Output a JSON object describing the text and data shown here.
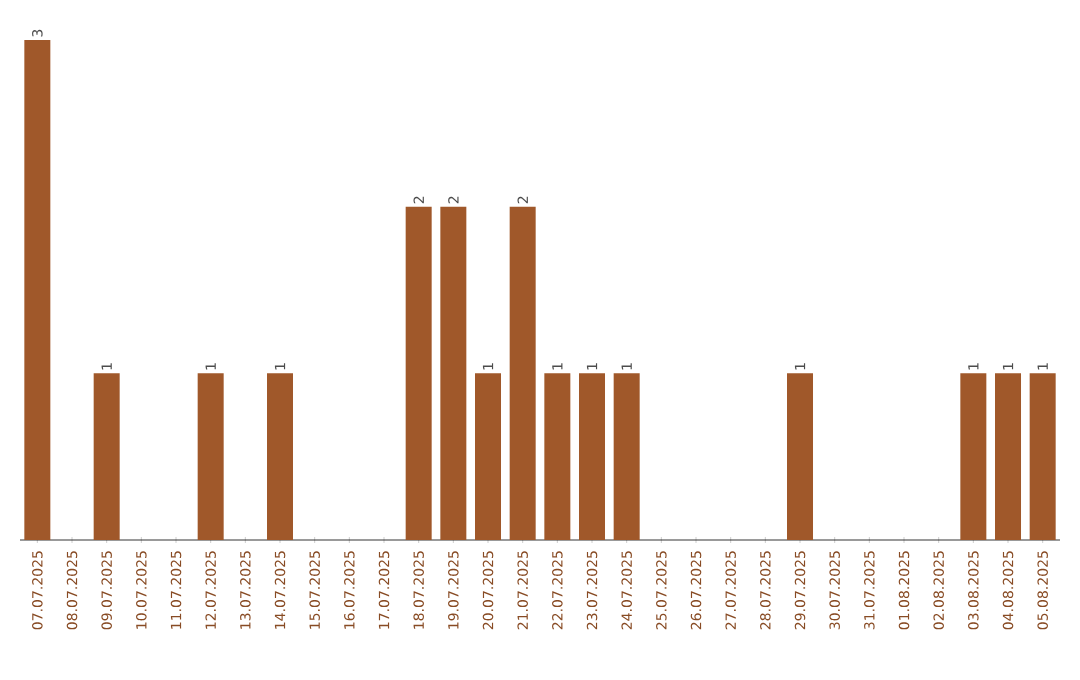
{
  "chart_data": {
    "type": "bar",
    "categories": [
      "07.07.2025",
      "08.07.2025",
      "09.07.2025",
      "10.07.2025",
      "11.07.2025",
      "12.07.2025",
      "13.07.2025",
      "14.07.2025",
      "15.07.2025",
      "16.07.2025",
      "17.07.2025",
      "18.07.2025",
      "19.07.2025",
      "20.07.2025",
      "21.07.2025",
      "22.07.2025",
      "23.07.2025",
      "24.07.2025",
      "25.07.2025",
      "26.07.2025",
      "27.07.2025",
      "28.07.2025",
      "29.07.2025",
      "30.07.2025",
      "31.07.2025",
      "01.08.2025",
      "02.08.2025",
      "03.08.2025",
      "04.08.2025",
      "05.08.2025"
    ],
    "values": [
      3,
      0,
      1,
      0,
      0,
      1,
      0,
      1,
      0,
      0,
      0,
      2,
      2,
      1,
      2,
      1,
      1,
      1,
      0,
      0,
      0,
      0,
      1,
      0,
      0,
      0,
      0,
      1,
      1,
      1
    ],
    "value_labels": [
      "3",
      null,
      "1",
      null,
      null,
      "1",
      null,
      "1",
      null,
      null,
      null,
      "2",
      "2",
      "1",
      "2",
      "1",
      "1",
      "1",
      null,
      null,
      null,
      null,
      "1",
      null,
      null,
      null,
      null,
      "1",
      "1",
      "1"
    ],
    "color": "#a0582a"
  }
}
